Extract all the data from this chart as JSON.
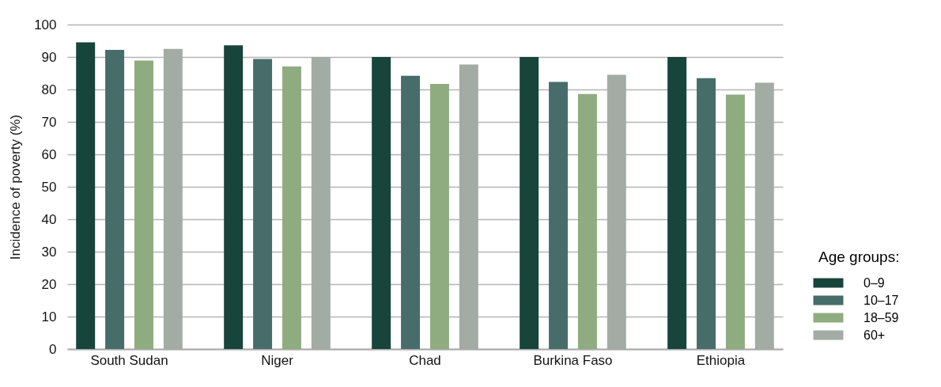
{
  "chart_data": {
    "type": "bar",
    "ylabel": "Incidence of poverty (%)",
    "legend_title": "Age groups:",
    "categories": [
      "South Sudan",
      "Niger",
      "Chad",
      "Burkina Faso",
      "Ethiopia"
    ],
    "series": [
      {
        "name": "0–9",
        "color": "#17443b",
        "values": [
          94.5,
          93.6,
          90,
          90,
          90
        ]
      },
      {
        "name": "10–17",
        "color": "#476d6b",
        "values": [
          92.2,
          89.4,
          84.2,
          82.3,
          83.5
        ]
      },
      {
        "name": "18–59",
        "color": "#8fac80",
        "values": [
          88.9,
          87.1,
          81.7,
          78.6,
          78.4
        ]
      },
      {
        "name": "60+",
        "color": "#a2aca4",
        "values": [
          92.5,
          90,
          87.7,
          84.5,
          82.1
        ]
      }
    ],
    "ylim": [
      0,
      100
    ],
    "yticks": [
      0,
      10,
      20,
      30,
      40,
      50,
      60,
      70,
      80,
      90,
      100
    ],
    "grid": "y",
    "legend": "bottom right"
  }
}
